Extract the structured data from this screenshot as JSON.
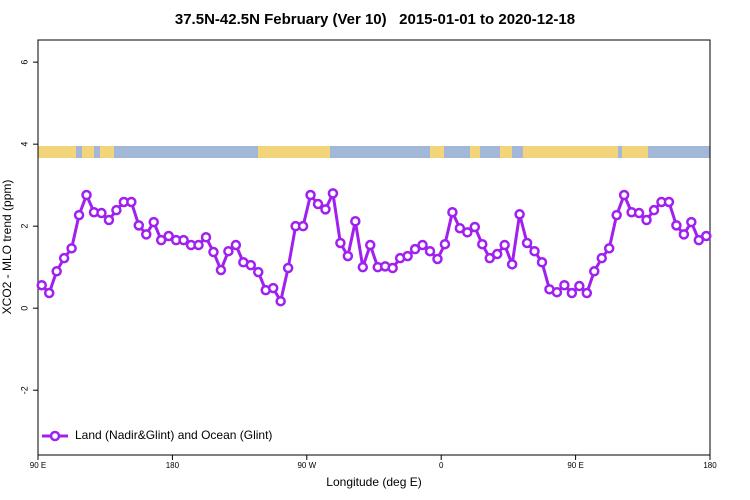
{
  "chart_data": {
    "type": "line",
    "title": "37.5N-42.5N February (Ver 10)   2015-01-01 to 2020-12-18",
    "x_label": "Longitude (deg E)",
    "y_label": "XCO2 - MLO trend (ppm)",
    "x": [
      92.5,
      97.5,
      102.5,
      107.5,
      112.5,
      117.5,
      122.5,
      127.5,
      132.5,
      137.5,
      142.5,
      147.5,
      152.5,
      157.5,
      162.5,
      167.5,
      172.5,
      177.5,
      182.5,
      187.5,
      192.5,
      197.5,
      202.5,
      207.5,
      212.5,
      217.5,
      222.5,
      227.5,
      232.5,
      237.5,
      242.5,
      247.5,
      252.5,
      257.5,
      262.5,
      267.5,
      272.5,
      277.5,
      282.5,
      287.5,
      292.5,
      297.5,
      302.5,
      307.5,
      312.5,
      317.5,
      322.5,
      327.5,
      332.5,
      337.5,
      342.5,
      347.5,
      352.5,
      357.5,
      362.5,
      367.5,
      372.5,
      377.5,
      382.5,
      387.5,
      392.5,
      397.5,
      402.5,
      407.5,
      412.5,
      417.5,
      422.5,
      427.5,
      432.5,
      437.5,
      442.5,
      447.5,
      452.5,
      457.5,
      462.5,
      467.5,
      472.5,
      477.5,
      482.5,
      487.5,
      492.5,
      497.5,
      502.5,
      507.5,
      512.5,
      517.5,
      522.5,
      527.5,
      532.5,
      537.5
    ],
    "series": [
      {
        "name": "Land (Nadir&Glint) and Ocean (Glint)",
        "color": "#a020f0",
        "values": [
          0.56,
          0.37,
          0.9,
          1.22,
          1.46,
          2.27,
          2.76,
          2.34,
          2.32,
          2.15,
          2.39,
          2.59,
          2.59,
          2.02,
          1.8,
          2.1,
          1.66,
          1.76,
          1.66,
          1.66,
          1.54,
          1.54,
          1.73,
          1.37,
          0.93,
          1.39,
          1.54,
          1.12,
          1.05,
          0.88,
          0.44,
          0.49,
          0.17,
          0.98,
          2.0,
          2.0,
          2.76,
          2.54,
          2.41,
          2.8,
          1.59,
          1.27,
          2.12,
          1.0,
          1.54,
          1.0,
          1.02,
          0.98,
          1.22,
          1.27,
          1.44,
          1.54,
          1.39,
          1.2,
          1.56,
          2.34,
          1.95,
          1.85,
          1.98,
          1.56,
          1.22,
          1.32,
          1.54,
          1.07,
          2.29,
          1.59,
          1.39,
          1.12,
          0.46,
          0.39,
          0.56,
          0.37,
          0.54,
          0.37,
          0.9,
          1.22,
          1.46,
          2.27,
          2.76,
          2.34,
          2.32,
          2.15,
          2.39,
          2.59,
          2.59,
          2.02,
          1.8,
          2.1,
          1.66,
          1.76
        ]
      }
    ],
    "xlim": [
      90,
      540
    ],
    "xticks": [
      {
        "value": 90,
        "label": "90 E"
      },
      180,
      {
        "value": 270,
        "label": "90 W"
      },
      {
        "value": 360,
        "label": "0"
      },
      {
        "value": 450,
        "label": "90 E"
      },
      {
        "value": 540,
        "label": "180"
      }
    ],
    "ylim": [
      -3.58,
      6.54
    ],
    "yticks": [
      -2,
      0,
      2,
      4,
      6
    ],
    "legend": "bottom-left"
  }
}
